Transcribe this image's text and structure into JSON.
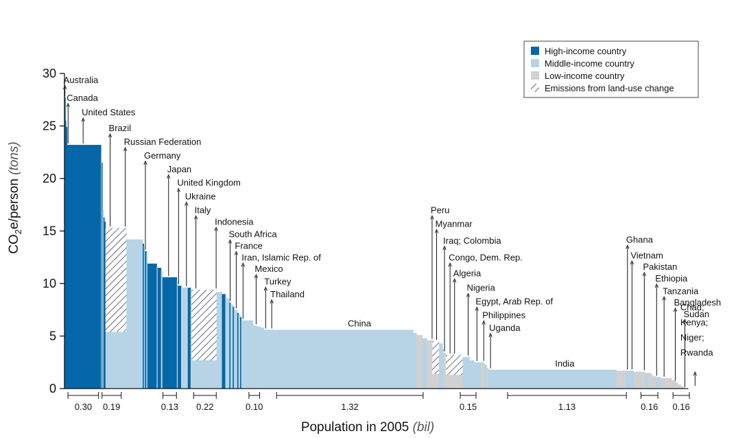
{
  "chart_data": {
    "type": "bar",
    "variant": "variable-width bars (x width = population)",
    "ylabel_main": "CO",
    "ylabel_sub": "2",
    "ylabel_rest": "e/person ",
    "ylabel_unit": "(tons)",
    "xlabel_main": "Population in 2005 ",
    "xlabel_unit": "(bil)",
    "ylim": [
      0,
      30
    ],
    "yticks": [
      0,
      5,
      10,
      15,
      20,
      25,
      30
    ],
    "ytick_labels": [
      "0",
      "5",
      "10",
      "15",
      "20",
      "25",
      "30"
    ],
    "grid": false,
    "legend_position": "top-right",
    "colors": {
      "high": "#0567a8",
      "middle": "#b7d4e6",
      "low": "#d1d1d1",
      "hatch": "#2a2a2a"
    },
    "legend": [
      {
        "category": "high",
        "label": "High-income country"
      },
      {
        "category": "middle",
        "label": "Middle-income country"
      },
      {
        "category": "low",
        "label": "Low-income country"
      },
      {
        "category": "hatch",
        "label": "Emissions from land-use change"
      }
    ],
    "bars": [
      {
        "width": 0.003,
        "value": 28.6,
        "category": "high"
      },
      {
        "width": 0.005,
        "value": 27.7,
        "category": "high"
      },
      {
        "width": 0.005,
        "value": 25.5,
        "category": "high"
      },
      {
        "width": 0.01,
        "value": 24.9,
        "category": "high"
      },
      {
        "width": 0.3,
        "value": 23.2,
        "category": "high"
      },
      {
        "width": 0.006,
        "value": 22.2,
        "category": "middle"
      },
      {
        "width": 0.006,
        "value": 21.5,
        "category": "high"
      },
      {
        "width": 0.01,
        "value": 17.1,
        "category": "middle"
      },
      {
        "width": 0.008,
        "value": 16.3,
        "category": "high"
      },
      {
        "width": 0.01,
        "value": 15.9,
        "category": "high"
      },
      {
        "width": 0.186,
        "value": 15.3,
        "category": "middle",
        "hatch_from": 5.4
      },
      {
        "width": 0.143,
        "value": 14.2,
        "category": "middle"
      },
      {
        "width": 0.01,
        "value": 13.8,
        "category": "high"
      },
      {
        "width": 0.01,
        "value": 13.5,
        "category": "middle"
      },
      {
        "width": 0.012,
        "value": 13.1,
        "category": "high"
      },
      {
        "width": 0.01,
        "value": 12.6,
        "category": "middle"
      },
      {
        "width": 0.082,
        "value": 11.9,
        "category": "high"
      },
      {
        "width": 0.008,
        "value": 11.6,
        "category": "middle"
      },
      {
        "width": 0.03,
        "value": 11.5,
        "category": "high"
      },
      {
        "width": 0.012,
        "value": 11.2,
        "category": "middle"
      },
      {
        "width": 0.128,
        "value": 10.6,
        "category": "high"
      },
      {
        "width": 0.008,
        "value": 10.3,
        "category": "middle"
      },
      {
        "width": 0.03,
        "value": 9.8,
        "category": "high"
      },
      {
        "width": 0.012,
        "value": 9.7,
        "category": "middle"
      },
      {
        "width": 0.047,
        "value": 9.6,
        "category": "middle"
      },
      {
        "width": 0.025,
        "value": 9.6,
        "category": "high"
      },
      {
        "width": 0.01,
        "value": 9.5,
        "category": "middle"
      },
      {
        "width": 0.22,
        "value": 9.4,
        "category": "middle",
        "hatch_from": 2.7
      },
      {
        "width": 0.047,
        "value": 9.2,
        "category": "middle"
      },
      {
        "width": 0.03,
        "value": 9.0,
        "category": "high"
      },
      {
        "width": 0.006,
        "value": 8.9,
        "category": "middle"
      },
      {
        "width": 0.03,
        "value": 8.6,
        "category": "middle"
      },
      {
        "width": 0.01,
        "value": 8.2,
        "category": "high"
      },
      {
        "width": 0.02,
        "value": 8.0,
        "category": "middle"
      },
      {
        "width": 0.01,
        "value": 7.8,
        "category": "high"
      },
      {
        "width": 0.03,
        "value": 7.5,
        "category": "middle"
      },
      {
        "width": 0.01,
        "value": 7.2,
        "category": "high"
      },
      {
        "width": 0.015,
        "value": 7.0,
        "category": "middle"
      },
      {
        "width": 0.01,
        "value": 6.8,
        "category": "high"
      },
      {
        "width": 0.104,
        "value": 6.5,
        "category": "middle"
      },
      {
        "width": 0.034,
        "value": 6.0,
        "category": "middle"
      },
      {
        "width": 0.033,
        "value": 5.9,
        "category": "middle"
      },
      {
        "width": 0.03,
        "value": 5.8,
        "category": "middle"
      },
      {
        "width": 1.32,
        "value": 5.6,
        "category": "middle"
      },
      {
        "width": 0.03,
        "value": 5.3,
        "category": "middle"
      },
      {
        "width": 0.05,
        "value": 5.1,
        "category": "low"
      },
      {
        "width": 0.04,
        "value": 4.8,
        "category": "middle"
      },
      {
        "width": 0.05,
        "value": 4.6,
        "category": "low"
      },
      {
        "width": 0.059,
        "value": 4.5,
        "category": "low",
        "hatch_from": 1.4
      },
      {
        "width": 0.03,
        "value": 4.3,
        "category": "middle"
      },
      {
        "width": 0.01,
        "value": 3.8,
        "category": "middle"
      },
      {
        "width": 0.02,
        "value": 3.4,
        "category": "low"
      },
      {
        "width": 0.15,
        "value": 3.2,
        "category": "low",
        "hatch_from": 1.3
      },
      {
        "width": 0.06,
        "value": 3.0,
        "category": "middle"
      },
      {
        "width": 0.04,
        "value": 2.7,
        "category": "middle"
      },
      {
        "width": 0.06,
        "value": 2.5,
        "category": "middle"
      },
      {
        "width": 0.03,
        "value": 2.5,
        "category": "low"
      },
      {
        "width": 0.02,
        "value": 2.3,
        "category": "middle"
      },
      {
        "width": 0.01,
        "value": 2.0,
        "category": "low"
      },
      {
        "width": 0.01,
        "value": 1.9,
        "category": "middle"
      },
      {
        "width": 1.13,
        "value": 1.8,
        "category": "middle"
      },
      {
        "width": 0.08,
        "value": 1.7,
        "category": "low"
      },
      {
        "width": 0.07,
        "value": 1.7,
        "category": "middle"
      },
      {
        "width": 0.1,
        "value": 1.6,
        "category": "low"
      },
      {
        "width": 0.03,
        "value": 1.5,
        "category": "middle"
      },
      {
        "width": 0.03,
        "value": 1.5,
        "category": "low"
      },
      {
        "width": 0.01,
        "value": 1.3,
        "category": "low"
      },
      {
        "width": 0.03,
        "value": 1.2,
        "category": "low"
      },
      {
        "width": 0.04,
        "value": 1.1,
        "category": "middle"
      },
      {
        "width": 0.1,
        "value": 1.0,
        "category": "low"
      },
      {
        "width": 0.03,
        "value": 0.8,
        "category": "low"
      },
      {
        "width": 0.02,
        "value": 0.6,
        "category": "low"
      },
      {
        "width": 0.03,
        "value": 0.4,
        "category": "low"
      },
      {
        "width": 0.03,
        "value": 0.2,
        "category": "low"
      }
    ],
    "annotations": [
      {
        "text": "Australia",
        "x": 0.004
      },
      {
        "text": "Canada",
        "x": 0.032
      },
      {
        "text": "United States",
        "x": 0.165
      },
      {
        "text": "Brazil",
        "x": 0.404
      },
      {
        "text": "Russian Federation",
        "x": 0.538
      },
      {
        "text": "Germany",
        "x": 0.716
      },
      {
        "text": "Japan",
        "x": 0.921
      },
      {
        "text": "United Kingdom",
        "x": 1.01
      },
      {
        "text": "Ukraine",
        "x": 1.079
      },
      {
        "text": "Italy",
        "x": 1.163
      },
      {
        "text": "Indonesia",
        "x": 1.342
      },
      {
        "text": "South Africa",
        "x": 1.466
      },
      {
        "text": "France",
        "x": 1.52
      },
      {
        "text": "Iran, Islamic Rep. of",
        "x": 1.58
      },
      {
        "text": "Mexico",
        "x": 1.696
      },
      {
        "text": "Turkey",
        "x": 1.78
      },
      {
        "text": "Thailand",
        "x": 1.834
      },
      {
        "text": "Peru",
        "x": 3.253
      },
      {
        "text": "Myanmar",
        "x": 3.293
      },
      {
        "text": "Iraq; Colombia",
        "x": 3.363
      },
      {
        "text": "Congo, Dem. Rep.",
        "x": 3.412
      },
      {
        "text": "Algeria",
        "x": 3.452
      },
      {
        "text": "Nigeria",
        "x": 3.572
      },
      {
        "text": "Egypt, Arab Rep. of",
        "x": 3.65
      },
      {
        "text": "Philippines",
        "x": 3.71
      },
      {
        "text": "Uganda",
        "x": 3.77
      },
      {
        "text": "Ghana",
        "x": 4.982
      },
      {
        "text": "Vietnam",
        "x": 5.022
      },
      {
        "text": "Pakistan",
        "x": 5.131
      },
      {
        "text": "Ethiopia",
        "x": 5.24
      },
      {
        "text": "Tanzania",
        "x": 5.306
      },
      {
        "text": "Bangladesh",
        "x": 5.405
      },
      {
        "text": "Sudan",
        "x": 5.49
      },
      {
        "text": "Chad;",
        "x": 5.58
      },
      {
        "text": "Kenya;",
        "x": 5.58
      },
      {
        "text": "Niger;",
        "x": 5.58
      },
      {
        "text": "Rwanda",
        "x": 5.58
      }
    ],
    "region_labels": [
      {
        "text": "China",
        "x": 2.61,
        "y": 5.9
      },
      {
        "text": "India",
        "x": 4.427,
        "y": 2.1
      }
    ],
    "population_brackets": [
      {
        "label": "0.30",
        "x0": 0.031,
        "x1": 0.302
      },
      {
        "label": "0.19",
        "x0": 0.332,
        "x1": 0.502
      },
      {
        "label": "0.13",
        "x0": 0.871,
        "x1": 0.991
      },
      {
        "label": "0.22",
        "x0": 1.143,
        "x1": 1.343
      },
      {
        "label": "0.10",
        "x0": 1.632,
        "x1": 1.727
      },
      {
        "label": "1.32",
        "x0": 1.877,
        "x1": 3.174
      },
      {
        "label": "0.15",
        "x0": 3.502,
        "x1": 3.642
      },
      {
        "label": "1.13",
        "x0": 3.921,
        "x1": 4.972
      },
      {
        "label": "0.16",
        "x0": 5.101,
        "x1": 5.251
      },
      {
        "label": "0.16",
        "x0": 5.385,
        "x1": 5.53
      }
    ]
  }
}
